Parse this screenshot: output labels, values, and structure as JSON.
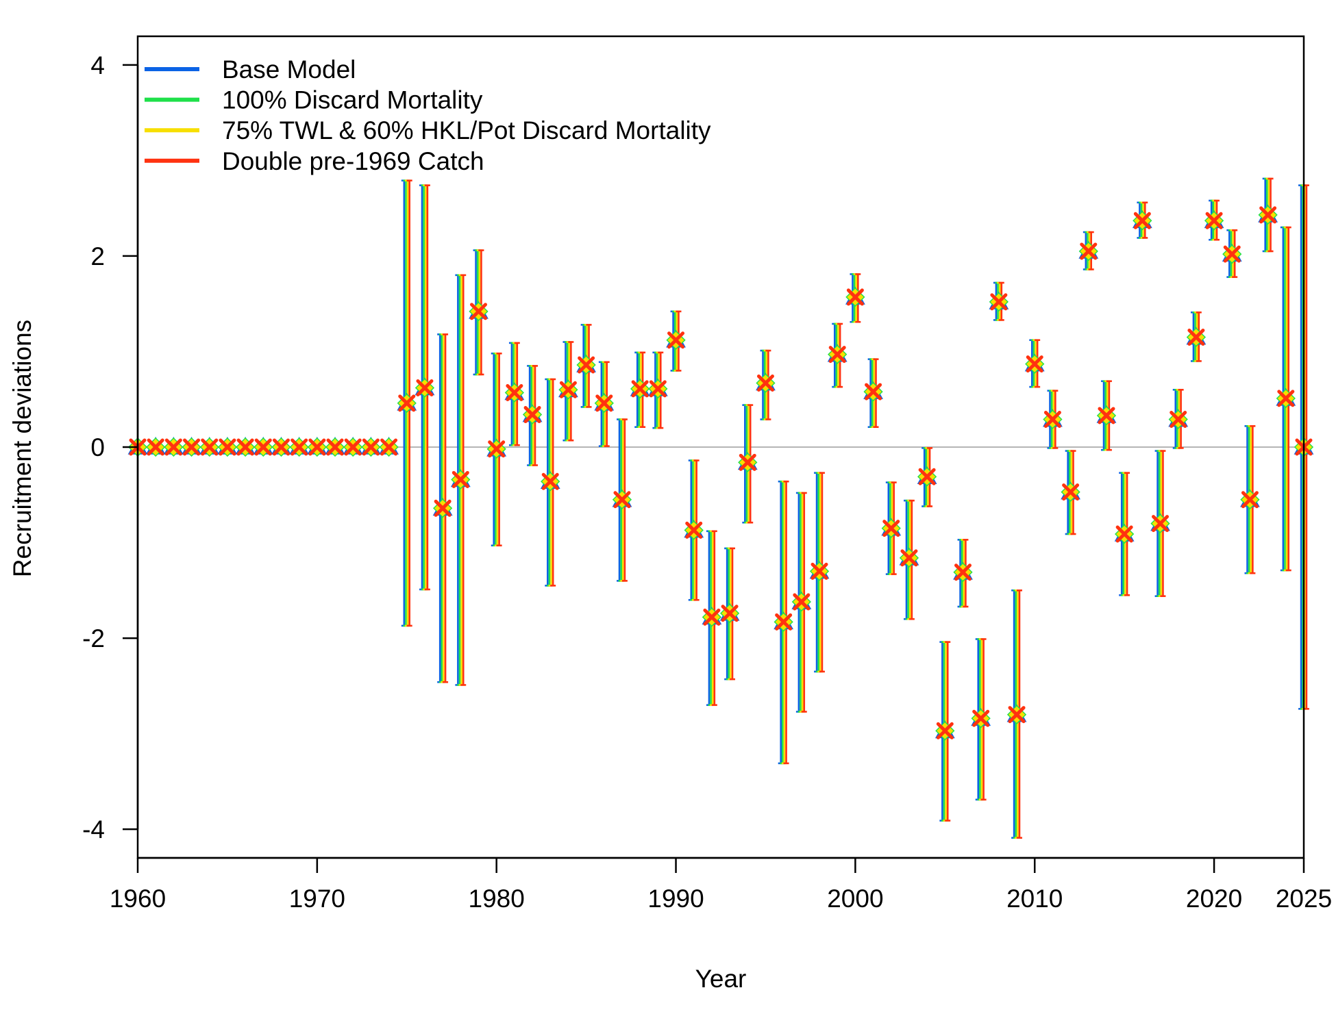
{
  "chart_data": {
    "type": "scatter",
    "title": "",
    "xlabel": "Year",
    "ylabel": "Recruitment deviations",
    "xlim": [
      1960,
      2025
    ],
    "ylim": [
      -4.3,
      4.3
    ],
    "x_ticks": [
      1960,
      1970,
      1980,
      1990,
      2000,
      2010,
      2020,
      2025
    ],
    "y_ticks": [
      -4,
      -2,
      0,
      2,
      4
    ],
    "y_tick_labels": [
      "-4",
      "-2",
      "0",
      "2",
      "4"
    ],
    "grid": false,
    "reference_line": {
      "y": 0,
      "color": "#b5b5b5"
    },
    "legend": {
      "position": "top-left"
    },
    "years": [
      1960,
      1961,
      1962,
      1963,
      1964,
      1965,
      1966,
      1967,
      1968,
      1969,
      1970,
      1971,
      1972,
      1973,
      1974,
      1975,
      1976,
      1977,
      1978,
      1979,
      1980,
      1981,
      1982,
      1983,
      1984,
      1985,
      1986,
      1987,
      1988,
      1989,
      1990,
      1991,
      1992,
      1993,
      1994,
      1995,
      1996,
      1997,
      1998,
      1999,
      2000,
      2001,
      2002,
      2003,
      2004,
      2005,
      2006,
      2007,
      2008,
      2009,
      2010,
      2011,
      2012,
      2013,
      2014,
      2015,
      2016,
      2017,
      2018,
      2019,
      2020,
      2021,
      2022,
      2023,
      2024,
      2025
    ],
    "estimates": [
      0,
      0,
      0,
      0,
      0,
      0,
      0,
      0,
      0,
      0,
      0,
      0,
      0,
      0,
      0,
      0.46,
      0.62,
      -0.64,
      -0.34,
      1.42,
      -0.02,
      0.57,
      0.34,
      -0.36,
      0.6,
      0.86,
      0.46,
      -0.55,
      0.61,
      0.61,
      1.12,
      -0.87,
      -1.78,
      -1.74,
      -0.16,
      0.67,
      -1.83,
      -1.62,
      -1.3,
      0.97,
      1.57,
      0.58,
      -0.85,
      -1.16,
      -0.31,
      -2.97,
      -1.31,
      -2.84,
      1.52,
      -2.8,
      0.87,
      0.29,
      -0.47,
      2.05,
      0.33,
      -0.91,
      2.37,
      -0.8,
      0.29,
      1.15,
      2.37,
      2.02,
      -0.55,
      2.43,
      0.51,
      0
    ],
    "lower": [
      null,
      null,
      null,
      null,
      null,
      null,
      null,
      null,
      null,
      null,
      null,
      null,
      null,
      null,
      null,
      -1.87,
      -1.49,
      -2.46,
      -2.49,
      0.76,
      -1.03,
      0.02,
      -0.19,
      -1.45,
      0.07,
      0.42,
      0.01,
      -1.4,
      0.21,
      0.2,
      0.8,
      -1.6,
      -2.7,
      -2.43,
      -0.79,
      0.29,
      -3.31,
      -2.77,
      -2.35,
      0.63,
      1.31,
      0.21,
      -1.33,
      -1.8,
      -0.62,
      -3.91,
      -1.67,
      -3.69,
      1.33,
      -4.09,
      0.63,
      -0.01,
      -0.91,
      1.86,
      -0.03,
      -1.55,
      2.19,
      -1.56,
      -0.01,
      0.9,
      2.17,
      1.78,
      -1.32,
      2.05,
      -1.29,
      -2.74
    ],
    "upper": [
      null,
      null,
      null,
      null,
      null,
      null,
      null,
      null,
      null,
      null,
      null,
      null,
      null,
      null,
      null,
      2.79,
      2.74,
      1.18,
      1.8,
      2.06,
      0.98,
      1.09,
      0.85,
      0.71,
      1.1,
      1.28,
      0.89,
      0.29,
      0.99,
      0.99,
      1.42,
      -0.14,
      -0.88,
      -1.06,
      0.44,
      1.01,
      -0.36,
      -0.48,
      -0.27,
      1.29,
      1.81,
      0.92,
      -0.37,
      -0.56,
      -0.01,
      -2.04,
      -0.97,
      -2.01,
      1.72,
      -1.5,
      1.12,
      0.59,
      -0.04,
      2.25,
      0.69,
      -0.27,
      2.56,
      -0.04,
      0.6,
      1.41,
      2.58,
      2.27,
      0.22,
      2.81,
      2.3,
      2.74
    ],
    "series": [
      {
        "name": "Base Model",
        "color": "#0b63e5",
        "offset_year": -0.15,
        "marker": "triangle"
      },
      {
        "name": "100% Discard Mortality",
        "color": "#1fe04a",
        "offset_year": -0.05,
        "marker": "diamond"
      },
      {
        "name": "75% TWL & 60% HKL/Pot Discard Mortality",
        "color": "#f7df00",
        "offset_year": 0.05,
        "marker": "diamond"
      },
      {
        "name": "Double pre-1969 Catch",
        "color": "#ff3210",
        "offset_year": 0.15,
        "marker": "x"
      }
    ]
  }
}
